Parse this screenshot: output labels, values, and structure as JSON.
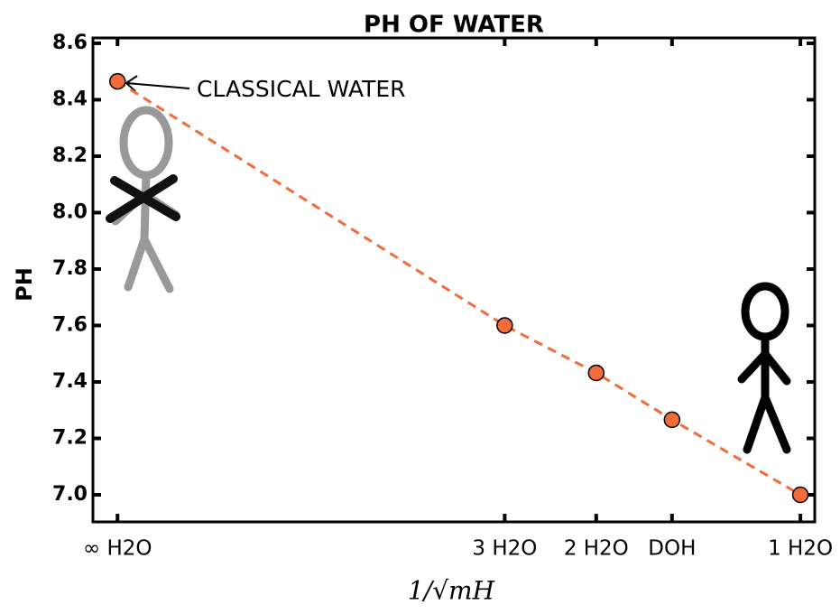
{
  "chart_data": {
    "type": "scatter",
    "title": "PH OF WATER",
    "xlabel": "1/√mH",
    "ylabel": "PH",
    "annotation": "CLASSICAL WATER",
    "x": [
      0,
      0.567,
      0.701,
      0.812,
      1
    ],
    "values": [
      8.465,
      7.6,
      7.432,
      7.266,
      7.0
    ],
    "color": "#f26b3a",
    "line_color": "#f26b3a",
    "xlim": [
      -0.036,
      1.021
    ],
    "ylim": [
      6.904,
      8.619
    ],
    "xticks": [
      {
        "value": 0,
        "label": "∞ H2O"
      },
      {
        "value": 0.567,
        "label": "3 H2O"
      },
      {
        "value": 0.701,
        "label": "2 H2O"
      },
      {
        "value": 0.812,
        "label": "DOH"
      },
      {
        "value": 1,
        "label": "1 H2O"
      }
    ],
    "yticks": [
      {
        "value": 7.0,
        "label": "7.0"
      },
      7.2,
      7.4,
      7.6,
      7.8,
      {
        "value": 8.0,
        "label": "8.0"
      },
      8.2,
      8.4,
      8.6
    ]
  }
}
